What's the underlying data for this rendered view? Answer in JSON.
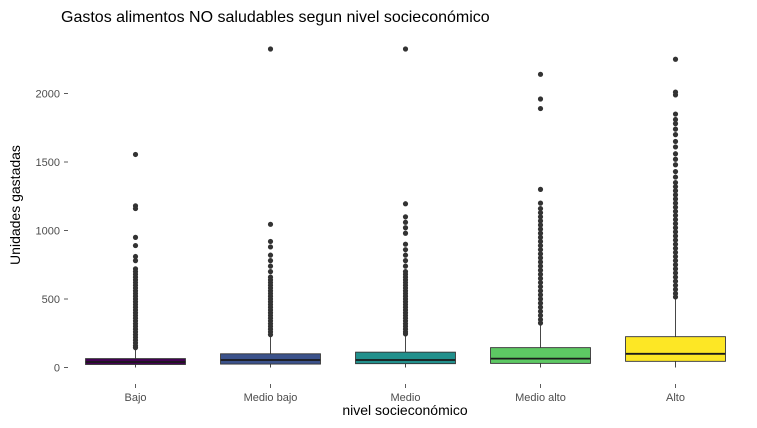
{
  "chart_data": {
    "type": "boxplot",
    "title": "Gastos alimentos NO saludables segun nivel socieconómico",
    "xlabel": "nivel socieconómico",
    "ylabel": "Unidades gastadas",
    "categories": [
      "Bajo",
      "Medio bajo",
      "Medio",
      "Medio alto",
      "Alto"
    ],
    "ylim": [
      -50,
      2380
    ],
    "yticks": [
      0,
      500,
      1000,
      1500,
      2000
    ],
    "grid": false,
    "legend": "none",
    "boxes": [
      {
        "category": "Bajo",
        "color": "#440154",
        "q1": 22,
        "median": 40,
        "q3": 65,
        "whisker_low": 0,
        "whisker_high": 135,
        "outliers": [
          1555,
          1180,
          1160,
          950,
          890,
          810,
          780,
          720,
          700,
          680,
          660,
          640,
          620,
          600,
          580,
          560,
          540,
          520,
          500,
          480,
          460,
          440,
          420,
          400,
          380,
          360,
          340,
          320,
          300,
          280,
          260,
          240,
          220,
          200,
          180,
          160,
          145
        ]
      },
      {
        "category": "Medio bajo",
        "color": "#3b528b",
        "q1": 25,
        "median": 55,
        "q3": 100,
        "whisker_low": 0,
        "whisker_high": 225,
        "outliers": [
          2325,
          1045,
          920,
          880,
          820,
          780,
          740,
          700,
          660,
          640,
          620,
          600,
          580,
          560,
          540,
          520,
          500,
          480,
          460,
          440,
          420,
          400,
          380,
          360,
          340,
          320,
          300,
          280,
          260,
          240
        ]
      },
      {
        "category": "Medio",
        "color": "#21908c",
        "q1": 28,
        "median": 55,
        "q3": 112,
        "whisker_low": 0,
        "whisker_high": 235,
        "outliers": [
          2325,
          1195,
          1100,
          1060,
          1020,
          980,
          900,
          860,
          820,
          780,
          740,
          700,
          680,
          660,
          640,
          620,
          600,
          580,
          560,
          540,
          520,
          500,
          480,
          460,
          440,
          420,
          400,
          380,
          360,
          340,
          320,
          300,
          280,
          260,
          245
        ]
      },
      {
        "category": "Medio alto",
        "color": "#5dc863",
        "q1": 30,
        "median": 65,
        "q3": 145,
        "whisker_low": 0,
        "whisker_high": 310,
        "outliers": [
          2140,
          1960,
          1890,
          1300,
          1200,
          1160,
          1130,
          1100,
          1070,
          1040,
          1010,
          980,
          950,
          920,
          890,
          860,
          830,
          800,
          770,
          740,
          710,
          680,
          650,
          620,
          590,
          560,
          530,
          500,
          470,
          440,
          410,
          380,
          350,
          325
        ]
      },
      {
        "category": "Alto",
        "color": "#fde725",
        "q1": 45,
        "median": 100,
        "q3": 225,
        "whisker_low": 0,
        "whisker_high": 500,
        "outliers": [
          2250,
          2010,
          1990,
          1850,
          1810,
          1780,
          1740,
          1700,
          1650,
          1610,
          1560,
          1520,
          1480,
          1430,
          1390,
          1350,
          1320,
          1290,
          1260,
          1230,
          1200,
          1170,
          1140,
          1110,
          1080,
          1050,
          1020,
          990,
          960,
          930,
          900,
          870,
          840,
          810,
          780,
          750,
          720,
          690,
          660,
          630,
          600,
          570,
          540,
          515
        ]
      }
    ]
  }
}
